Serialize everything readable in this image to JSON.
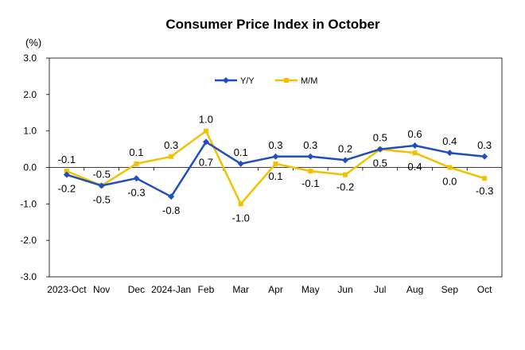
{
  "chart_data": {
    "type": "line",
    "title": "Consumer Price Index in October",
    "unit_label": "(%)",
    "categories": [
      "2023-Oct",
      "Nov",
      "Dec",
      "2024-Jan",
      "Feb",
      "Mar",
      "Apr",
      "May",
      "Jun",
      "Jul",
      "Aug",
      "Sep",
      "Oct"
    ],
    "series": [
      {
        "name": "Y/Y",
        "color": "#1f4fbf",
        "values": [
          -0.2,
          -0.5,
          -0.3,
          -0.8,
          0.7,
          0.1,
          0.3,
          0.3,
          0.2,
          0.5,
          0.6,
          0.4,
          0.3
        ],
        "labels": [
          "-0.2",
          "-0.5",
          "-0.3",
          "-0.8",
          "0.7",
          "0.1",
          "0.3",
          "0.3",
          "0.2",
          "0.5",
          "0.6",
          "0.4",
          "0.3"
        ]
      },
      {
        "name": "M/M",
        "color": "#f2c200",
        "values": [
          -0.1,
          -0.5,
          0.1,
          0.3,
          1.0,
          -1.0,
          0.1,
          -0.1,
          -0.2,
          0.5,
          0.4,
          0.0,
          -0.3
        ],
        "labels": [
          "-0.1",
          "-0.5",
          "0.1",
          "0.3",
          "1.0",
          "-1.0",
          "0.1",
          "-0.1",
          "-0.2",
          "0.5",
          "0.4",
          "0.0",
          "-0.3"
        ]
      }
    ],
    "ylim": [
      -3.0,
      3.0
    ],
    "yticks": [
      "3.0",
      "2.0",
      "1.0",
      "0.0",
      "-1.0",
      "-2.0",
      "-3.0"
    ],
    "ytick_values": [
      3,
      2,
      1,
      0,
      -1,
      -2,
      -3
    ],
    "grid": false,
    "legend_position": "top-center"
  }
}
